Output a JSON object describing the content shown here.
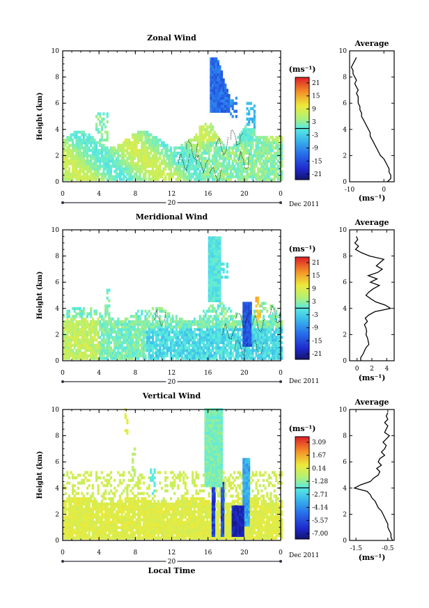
{
  "chart_data": [
    {
      "type": "heatmap",
      "title": "Zonal Wind",
      "ylabel": "Height (km)",
      "xlabel": "",
      "x_ticks": [
        "0",
        "4",
        "8",
        "12",
        "16",
        "20",
        "0"
      ],
      "y_ticks": [
        "0",
        "2",
        "4",
        "6",
        "8",
        "10"
      ],
      "xlim": [
        0,
        24
      ],
      "ylim": [
        0,
        10
      ],
      "day_label": "20",
      "month_label": "Dec 2011",
      "colorbar": {
        "unit": "(ms⁻¹)",
        "ticks": [
          "21",
          "15",
          "9",
          "3",
          "-3",
          "-9",
          "-15",
          "-21"
        ],
        "min": -24,
        "max": 24
      },
      "average": {
        "title": "Average",
        "xlabel": "(ms⁻¹)",
        "x_ticks": [
          "-10",
          "0"
        ],
        "xlim": [
          -10,
          3
        ],
        "y_ticks": [
          "0",
          "2",
          "4",
          "6",
          "8",
          "10"
        ],
        "heights": [
          0,
          0.25,
          0.5,
          0.75,
          1,
          1.25,
          1.5,
          1.75,
          2,
          2.25,
          2.5,
          2.75,
          3,
          3.25,
          3.5,
          3.75,
          4,
          4.25,
          4.5,
          4.75,
          5,
          5.25,
          5.5,
          5.75,
          6,
          6.25,
          6.5,
          6.75,
          7,
          7.25,
          7.5,
          7.75,
          8,
          8.25,
          8.5,
          8.75,
          9,
          9.25,
          9.5
        ],
        "values": [
          1,
          2,
          2,
          1.5,
          1.5,
          1,
          0.5,
          0,
          -1,
          -1.5,
          -2,
          -2.5,
          -3,
          -3.5,
          -4,
          -4,
          -4.5,
          -5,
          -5.5,
          -6,
          -6.5,
          -6.5,
          -7,
          -7,
          -7.5,
          -7.5,
          -7.5,
          -8,
          -7.5,
          -8,
          -8.5,
          -8,
          -8.5,
          -9,
          -9,
          -9.5,
          -9,
          -8.5,
          -8
        ]
      }
    },
    {
      "type": "heatmap",
      "title": "Meridional Wind",
      "ylabel": "Height (km)",
      "xlabel": "",
      "x_ticks": [
        "0",
        "4",
        "8",
        "12",
        "16",
        "20",
        "0"
      ],
      "y_ticks": [
        "0",
        "2",
        "4",
        "6",
        "8",
        "10"
      ],
      "xlim": [
        0,
        24
      ],
      "ylim": [
        0,
        10
      ],
      "day_label": "20",
      "month_label": "Dec 2011",
      "colorbar": {
        "unit": "(ms⁻¹)",
        "ticks": [
          "21",
          "15",
          "9",
          "3",
          "-3",
          "-9",
          "-15",
          "-21"
        ],
        "min": -24,
        "max": 24
      },
      "average": {
        "title": "Average",
        "xlabel": "(ms⁻¹)",
        "x_ticks": [
          "0",
          "2",
          "4"
        ],
        "xlim": [
          -1,
          5
        ],
        "y_ticks": [
          "0",
          "2",
          "4",
          "6",
          "8",
          "10"
        ],
        "heights": [
          0,
          0.25,
          0.5,
          0.75,
          1,
          1.25,
          1.5,
          1.75,
          2,
          2.25,
          2.5,
          2.75,
          3,
          3.25,
          3.5,
          3.75,
          4,
          4.25,
          4.5,
          4.75,
          5,
          5.25,
          5.5,
          5.75,
          6,
          6.25,
          6.5,
          6.75,
          7,
          7.25,
          7.5,
          7.75,
          8,
          8.25,
          8.5,
          8.75,
          9,
          9.25,
          9.5
        ],
        "values": [
          0.5,
          0.5,
          0.8,
          1,
          1.2,
          1.6,
          1.5,
          1.4,
          1.2,
          1.3,
          1.2,
          1,
          1.4,
          1.1,
          1.6,
          2.4,
          4.5,
          3.8,
          2.5,
          1.8,
          1.2,
          1.6,
          2.2,
          3.0,
          1.8,
          2.7,
          1.5,
          2.8,
          3.4,
          2.6,
          3.1,
          3.6,
          1.7,
          0.6,
          -0.2,
          0.2,
          -0.3,
          0.1,
          -0.1
        ]
      }
    },
    {
      "type": "heatmap",
      "title": "Vertical Wind",
      "ylabel": "Height (km)",
      "xlabel": "Local Time",
      "x_ticks": [
        "0",
        "4",
        "8",
        "12",
        "16",
        "20",
        "0"
      ],
      "y_ticks": [
        "0",
        "2",
        "4",
        "6",
        "8",
        "10"
      ],
      "xlim": [
        0,
        24
      ],
      "ylim": [
        0,
        10
      ],
      "day_label": "20",
      "month_label": "Dec 2011",
      "colorbar": {
        "unit": "(ms⁻¹)",
        "ticks": [
          "3.09",
          "1.67",
          "0.14",
          "-1.28",
          "-2.71",
          "-4.14",
          "-5.57",
          "-7.00"
        ],
        "min": -7.7,
        "max": 3.8
      },
      "average": {
        "title": "Average",
        "xlabel": "(ms⁻¹)",
        "x_ticks": [
          "-1.5",
          "-0.5"
        ],
        "xlim": [
          -1.7,
          -0.3
        ],
        "y_ticks": [
          "0",
          "2",
          "4",
          "6",
          "8",
          "10"
        ],
        "heights": [
          0,
          0.25,
          0.5,
          0.75,
          1,
          1.25,
          1.5,
          1.75,
          2,
          2.25,
          2.5,
          2.75,
          3,
          3.25,
          3.5,
          3.75,
          4,
          4.25,
          4.5,
          4.75,
          5,
          5.25,
          5.5,
          5.75,
          6,
          6.25,
          6.5,
          6.75,
          7,
          7.25,
          7.5,
          7.75,
          8,
          8.25,
          8.5,
          8.75,
          9,
          9.25,
          9.5,
          9.75
        ],
        "values": [
          -0.35,
          -0.4,
          -0.4,
          -0.45,
          -0.5,
          -0.5,
          -0.55,
          -0.6,
          -0.65,
          -0.7,
          -0.8,
          -0.85,
          -0.9,
          -1.0,
          -1.05,
          -1.15,
          -1.55,
          -1.35,
          -1.05,
          -0.95,
          -0.8,
          -0.75,
          -0.85,
          -0.7,
          -0.8,
          -0.75,
          -0.6,
          -0.7,
          -0.6,
          -0.55,
          -0.65,
          -0.55,
          -0.45,
          -0.6,
          -0.55,
          -0.5,
          -0.6,
          -0.5,
          -0.55,
          -0.5
        ]
      }
    }
  ]
}
